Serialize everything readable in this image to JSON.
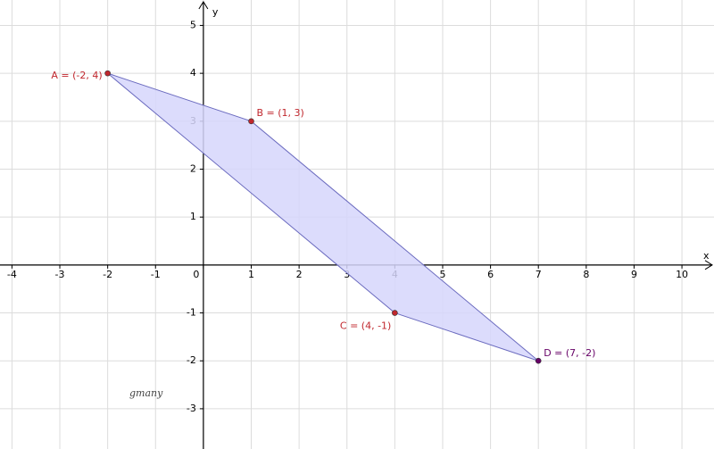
{
  "chart_data": {
    "type": "polygon",
    "x_label": "x",
    "y_label": "y",
    "xlim": [
      -4.25,
      10.67
    ],
    "ylim": [
      -3.84,
      5.53
    ],
    "xticks": [
      -4,
      -3,
      -2,
      -1,
      0,
      1,
      2,
      3,
      4,
      5,
      6,
      7,
      8,
      9,
      10
    ],
    "yticks": [
      -3,
      -2,
      -1,
      1,
      2,
      3,
      4,
      5
    ],
    "grid": true,
    "x": [
      -2,
      1,
      4,
      7
    ],
    "values": [
      4,
      3,
      -1,
      -2
    ],
    "point_labels": [
      "A = (-2, 4)",
      "B = (1, 3)",
      "C = (4, -1)",
      "D = (7, -2)"
    ],
    "point_colors": [
      "#c0272d",
      "#c0272d",
      "#c0272d",
      "#660066"
    ],
    "fill_color": "#d6d6fb",
    "edge_color": "#6b6bbf",
    "annotation": "gmany"
  }
}
